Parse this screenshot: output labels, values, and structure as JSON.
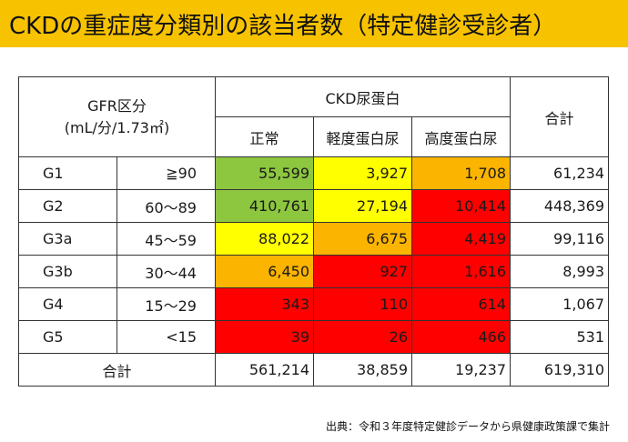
{
  "title": "CKDの重症度分類別の該当者数（特定健診受診者）",
  "header": {
    "gfr_label_line1": "GFR区分",
    "gfr_label_line2": "(mL/分/1.73㎡)",
    "protein_group": "CKD尿蛋白",
    "col_normal": "正常",
    "col_mild": "軽度蛋白尿",
    "col_high": "高度蛋白尿",
    "col_total": "合計"
  },
  "rows": [
    {
      "stage": "G1",
      "range": "≧90",
      "normal": "55,599",
      "mild": "3,927",
      "high": "1,708",
      "total": "61,234"
    },
    {
      "stage": "G2",
      "range": "60～89",
      "normal": "410,761",
      "mild": "27,194",
      "high": "10,414",
      "total": "448,369"
    },
    {
      "stage": "G3a",
      "range": "45～59",
      "normal": "88,022",
      "mild": "6,675",
      "high": "4,419",
      "total": "99,116"
    },
    {
      "stage": "G3b",
      "range": "30～44",
      "normal": "6,450",
      "mild": "927",
      "high": "1,616",
      "total": "8,993"
    },
    {
      "stage": "G4",
      "range": "15～29",
      "normal": "343",
      "mild": "110",
      "high": "614",
      "total": "1,067"
    },
    {
      "stage": "G5",
      "range": "<15",
      "normal": "39",
      "mild": "26",
      "high": "466",
      "total": "531"
    }
  ],
  "totals": {
    "label": "合計",
    "normal": "561,214",
    "mild": "38,859",
    "high": "19,237",
    "total": "619,310"
  },
  "source": "出典：令和３年度特定健診データから県健康政策課で集計",
  "colors": {
    "title_bg": "#f7c200",
    "green": "#8dc63f",
    "yellow": "#ffff00",
    "orange": "#fbb400",
    "red": "#fe0000"
  }
}
